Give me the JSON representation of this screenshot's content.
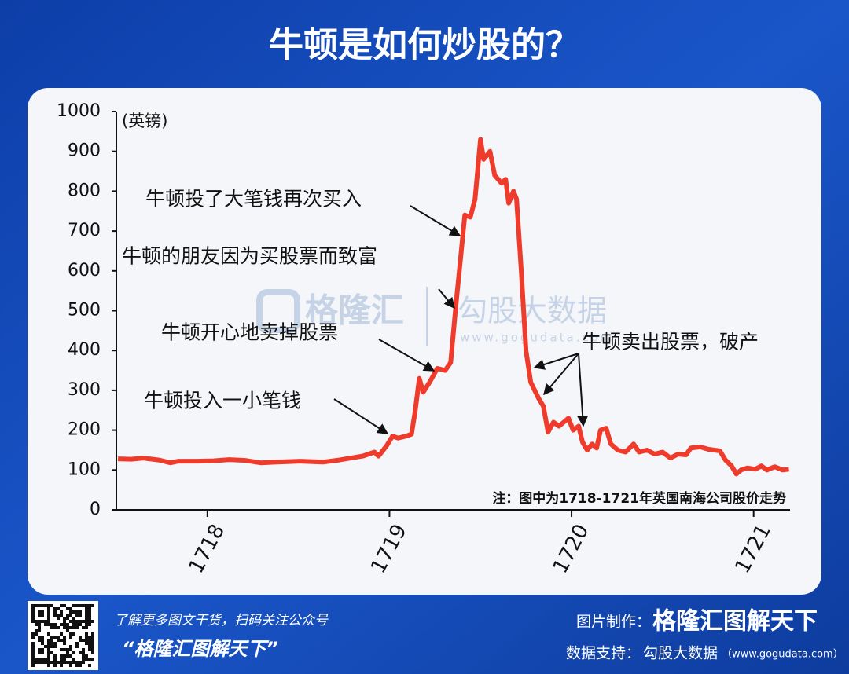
{
  "header": {
    "title": "牛顿是如何炒股的？"
  },
  "chart_data": {
    "type": "line",
    "y_unit": "(英镑)",
    "note": "注：图中为1718-1721年英国南海公司股价走势",
    "color": "#ee3b2b",
    "x": [
      1717.509,
      1717.582,
      1717.647,
      1717.733,
      1717.797,
      1717.841,
      1717.948,
      1718.034,
      1718.121,
      1718.207,
      1718.293,
      1718.379,
      1718.509,
      1718.638,
      1718.724,
      1718.789,
      1718.853,
      1718.918,
      1718.94,
      1718.983,
      1719.017,
      1719.047,
      1719.091,
      1719.121,
      1719.142,
      1719.164,
      1719.185,
      1719.22,
      1719.263,
      1719.306,
      1719.336,
      1719.362,
      1719.388,
      1719.414,
      1719.444,
      1719.47,
      1719.5,
      1719.517,
      1719.552,
      1719.578,
      1719.616,
      1719.638,
      1719.655,
      1719.681,
      1719.698,
      1719.724,
      1719.75,
      1719.776,
      1719.819,
      1719.845,
      1719.871,
      1719.901,
      1719.931,
      1719.957,
      1719.983,
      1720.009,
      1720.039,
      1720.06,
      1720.086,
      1720.112,
      1720.138,
      1720.159,
      1720.19,
      1720.216,
      1720.254,
      1720.297,
      1720.341,
      1720.371,
      1720.414,
      1720.457,
      1720.5,
      1720.543,
      1720.586,
      1720.629,
      1720.655,
      1720.707,
      1720.75,
      1720.815,
      1720.845,
      1720.879,
      1720.905,
      1720.931,
      1720.966,
      1721.009,
      1721.043,
      1721.073,
      1721.116,
      1721.159,
      1721.194
    ],
    "values": [
      128,
      127,
      130,
      125,
      118,
      122,
      122,
      123,
      126,
      124,
      118,
      120,
      122,
      120,
      125,
      130,
      135,
      145,
      135,
      160,
      185,
      180,
      185,
      190,
      250,
      330,
      295,
      320,
      355,
      350,
      370,
      500,
      620,
      740,
      735,
      780,
      930,
      880,
      900,
      840,
      820,
      830,
      770,
      800,
      780,
      600,
      400,
      320,
      280,
      260,
      195,
      220,
      210,
      220,
      230,
      200,
      210,
      170,
      150,
      165,
      155,
      200,
      205,
      165,
      150,
      145,
      165,
      145,
      150,
      140,
      145,
      130,
      140,
      138,
      155,
      158,
      152,
      148,
      125,
      110,
      90,
      100,
      105,
      102,
      110,
      100,
      108,
      100,
      102
    ],
    "xlim": [
      1717.5,
      1721.2
    ],
    "xticks": [
      1718,
      1719,
      1720,
      1721
    ],
    "ylim": [
      0,
      1000
    ],
    "yticks": [
      0,
      100,
      200,
      300,
      400,
      500,
      600,
      700,
      800,
      900,
      1000
    ],
    "annotations": [
      "牛顿投了大笔钱再次买入",
      "牛顿的朋友因为买股票而致富",
      "牛顿开心地卖掉股票",
      "牛顿投入一小笔钱",
      "牛顿卖出股票，破产"
    ]
  },
  "watermark": {
    "brand": "格隆汇",
    "data": "勾股大数据",
    "url": "www.gogudata.com"
  },
  "footer": {
    "left_line1": "了解更多图文干货，扫码关注公众号",
    "left_line2": "“格隆汇图解天下”",
    "made_label": "图片制作：",
    "made_by": "格隆汇图解天下",
    "data_label": "数据支持：",
    "data_by": "勾股大数据",
    "data_url": "（www.gogudata.com）"
  }
}
